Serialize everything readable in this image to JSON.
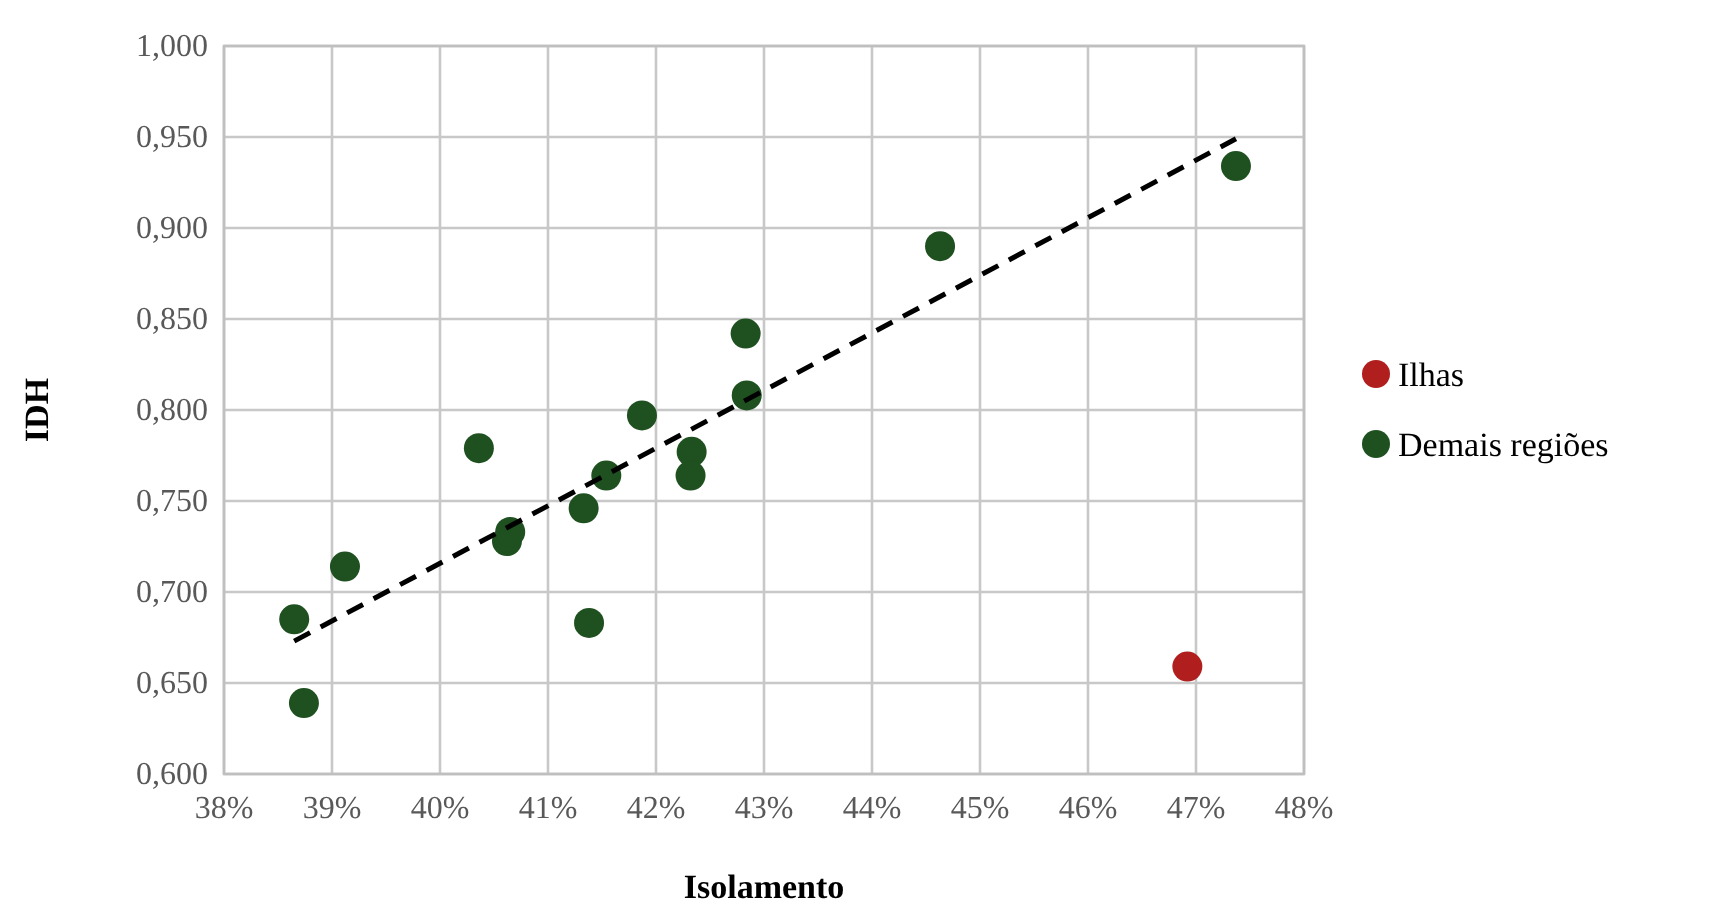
{
  "chart_data": {
    "type": "scatter",
    "xlabel": "Isolamento",
    "ylabel": "IDH",
    "xlim": [
      38,
      48
    ],
    "ylim": [
      0.6,
      1
    ],
    "xticks": [
      {
        "value": 38,
        "label": "38%"
      },
      {
        "value": 39,
        "label": "39%"
      },
      {
        "value": 40,
        "label": "40%"
      },
      {
        "value": 41,
        "label": "41%"
      },
      {
        "value": 42,
        "label": "42%"
      },
      {
        "value": 43,
        "label": "43%"
      },
      {
        "value": 44,
        "label": "44%"
      },
      {
        "value": 45,
        "label": "45%"
      },
      {
        "value": 46,
        "label": "46%"
      },
      {
        "value": 47,
        "label": "47%"
      },
      {
        "value": 48,
        "label": "48%"
      }
    ],
    "yticks": [
      {
        "value": 0.6,
        "label": "0,600"
      },
      {
        "value": 0.65,
        "label": "0,650"
      },
      {
        "value": 0.7,
        "label": "0,700"
      },
      {
        "value": 0.75,
        "label": "0,750"
      },
      {
        "value": 0.8,
        "label": "0,800"
      },
      {
        "value": 0.85,
        "label": "0,850"
      },
      {
        "value": 0.9,
        "label": "0,900"
      },
      {
        "value": 0.95,
        "label": "0,950"
      },
      {
        "value": 1,
        "label": "1,000"
      }
    ],
    "grid": true,
    "legend": "right",
    "series": [
      {
        "name": "Ilhas",
        "color": "#b01e1e",
        "marker": "circle",
        "x": [
          46.92
        ],
        "values": [
          0.659
        ]
      },
      {
        "name": "Demais regiões",
        "color": "#1f5020",
        "marker": "circle",
        "x": [
          38.65,
          38.74,
          39.12,
          40.36,
          40.62,
          40.65,
          41.33,
          41.38,
          41.54,
          41.87,
          42.33,
          42.32,
          42.83,
          42.84,
          44.63,
          47.37
        ],
        "values": [
          0.685,
          0.639,
          0.714,
          0.779,
          0.728,
          0.733,
          0.746,
          0.683,
          0.764,
          0.797,
          0.777,
          0.764,
          0.842,
          0.808,
          0.89,
          0.934
        ]
      },
      {
        "type": "line",
        "color": "#000000",
        "line_style": "dashed",
        "marker": "none",
        "x": [
          38.65,
          47.37
        ],
        "values": [
          0.673,
          0.949
        ]
      }
    ]
  }
}
